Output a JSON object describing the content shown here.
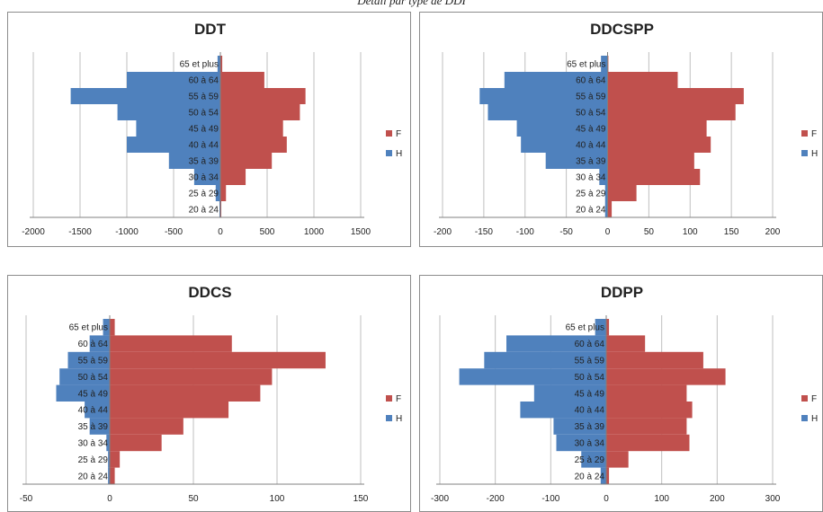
{
  "page_title": "Détail par type de DDI",
  "colors": {
    "F": "#c0504d",
    "H": "#4f81bd",
    "grid": "#bfbfbf"
  },
  "chart_data": [
    {
      "type": "bar",
      "title": "DDT",
      "categories": [
        "65 et plus",
        "60 à 64",
        "55 à 59",
        "50 à 54",
        "45 à 49",
        "40 à 44",
        "35 à 39",
        "30 à 34",
        "25 à 29",
        "20 à 24"
      ],
      "xlim": [
        -2000,
        1500
      ],
      "xticks": [
        -2000,
        -1500,
        -1000,
        -500,
        0,
        500,
        1000,
        1500
      ],
      "series": [
        {
          "name": "F",
          "values": [
            20,
            470,
            910,
            850,
            670,
            710,
            550,
            270,
            60,
            10
          ]
        },
        {
          "name": "H",
          "values": [
            -30,
            -1000,
            -1600,
            -1100,
            -900,
            -1000,
            -550,
            -280,
            -50,
            -10
          ]
        }
      ],
      "legend": "right"
    },
    {
      "type": "bar",
      "title": "DDCSPP",
      "categories": [
        "65 et plus",
        "60 à 64",
        "55 à 59",
        "50 à 54",
        "45 à 49",
        "40 à 44",
        "35 à 39",
        "30 à 34",
        "25 à 29",
        "20 à 24"
      ],
      "xlim": [
        -200,
        200
      ],
      "xticks": [
        -200,
        -150,
        -100,
        -50,
        0,
        50,
        100,
        150,
        200
      ],
      "series": [
        {
          "name": "F",
          "values": [
            1,
            85,
            165,
            155,
            120,
            125,
            105,
            112,
            35,
            5
          ]
        },
        {
          "name": "H",
          "values": [
            -8,
            -125,
            -155,
            -145,
            -110,
            -105,
            -75,
            -10,
            -3,
            -3
          ]
        }
      ],
      "legend": "right"
    },
    {
      "type": "bar",
      "title": "DDCS",
      "categories": [
        "65 et plus",
        "60 à 64",
        "55 à 59",
        "50 à 54",
        "45 à 49",
        "40 à 44",
        "35 à 39",
        "30 à 34",
        "25 à 29",
        "20 à 24"
      ],
      "xlim": [
        -50,
        150
      ],
      "xticks": [
        -50,
        0,
        50,
        100,
        150
      ],
      "series": [
        {
          "name": "F",
          "values": [
            3,
            73,
            129,
            97,
            90,
            71,
            44,
            31,
            6,
            3
          ]
        },
        {
          "name": "H",
          "values": [
            -4,
            -12,
            -25,
            -30,
            -32,
            -15,
            -12,
            -2,
            -1,
            -1
          ]
        }
      ],
      "legend": "right"
    },
    {
      "type": "bar",
      "title": "DDPP",
      "categories": [
        "65 et plus",
        "60 à 64",
        "55 à 59",
        "50 à 54",
        "45 à 49",
        "40 à 44",
        "35 à 39",
        "30 à 34",
        "25 à 29",
        "20 à 24"
      ],
      "xlim": [
        -300,
        300
      ],
      "xticks": [
        -300,
        -200,
        -100,
        0,
        100,
        200,
        300
      ],
      "series": [
        {
          "name": "F",
          "values": [
            5,
            70,
            175,
            215,
            145,
            155,
            145,
            150,
            40,
            5
          ]
        },
        {
          "name": "H",
          "values": [
            -20,
            -180,
            -220,
            -265,
            -130,
            -155,
            -95,
            -90,
            -45,
            -10
          ]
        }
      ],
      "legend": "right"
    }
  ]
}
